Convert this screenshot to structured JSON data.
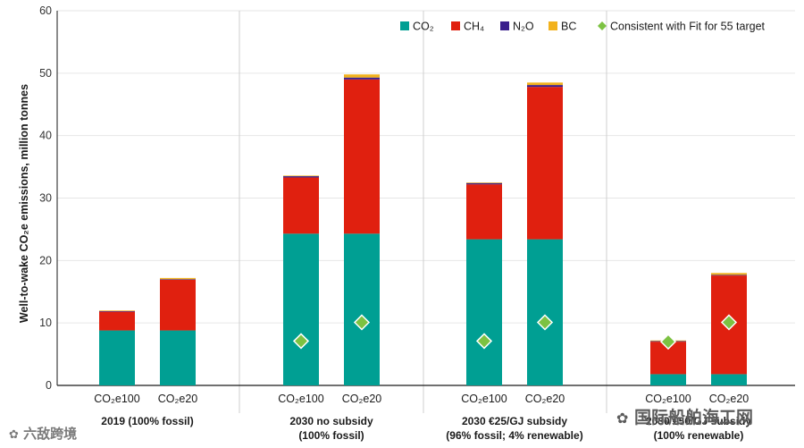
{
  "chart_data": {
    "type": "bar",
    "stacked": true,
    "ylabel": "Well-to-wake CO₂e emissions, million tonnes",
    "ylim": [
      0,
      60
    ],
    "yticks": [
      0,
      10,
      20,
      30,
      40,
      50,
      60
    ],
    "grid": "horizontal",
    "legend_position": "top-right",
    "colors": {
      "CO2": "#009f93",
      "CH4": "#e0200f",
      "N2O": "#3a1f8c",
      "BC": "#f2b21d",
      "target": "#7cc242",
      "grid": "#e6e6e6",
      "divider": "#cfcfcf",
      "axis": "#1a1a1a",
      "text": "#1a1a1a"
    },
    "legend": [
      {
        "key": "CO2",
        "label": "CO₂"
      },
      {
        "key": "CH4",
        "label": "CH₄"
      },
      {
        "key": "N2O",
        "label": "N₂O"
      },
      {
        "key": "BC",
        "label": "BC"
      },
      {
        "key": "target",
        "label": "Consistent with Fit for 55 target"
      }
    ],
    "groups": [
      {
        "label_line1": "2019 (100% fossil)",
        "label_line2": "",
        "bars": [
          {
            "label": "CO₂e100",
            "CO2": 8.8,
            "CH4": 3.0,
            "N2O": 0.1,
            "BC": 0.1,
            "target": null
          },
          {
            "label": "CO₂e20",
            "CO2": 8.8,
            "CH4": 8.1,
            "N2O": 0.1,
            "BC": 0.2,
            "target": null
          }
        ]
      },
      {
        "label_line1": "2030 no subsidy",
        "label_line2": "(100% fossil)",
        "bars": [
          {
            "label": "CO₂e100",
            "CO2": 24.3,
            "CH4": 9.0,
            "N2O": 0.2,
            "BC": 0.1,
            "target": 7.1
          },
          {
            "label": "CO₂e20",
            "CO2": 24.3,
            "CH4": 24.7,
            "N2O": 0.3,
            "BC": 0.5,
            "target": 10.1
          }
        ]
      },
      {
        "label_line1": "2030 €25/GJ subsidy",
        "label_line2": "(96% fossil; 4% renewable)",
        "bars": [
          {
            "label": "CO₂e100",
            "CO2": 23.4,
            "CH4": 8.8,
            "N2O": 0.2,
            "BC": 0.1,
            "target": 7.1
          },
          {
            "label": "CO₂e20",
            "CO2": 23.4,
            "CH4": 24.4,
            "N2O": 0.3,
            "BC": 0.4,
            "target": 10.1
          }
        ]
      },
      {
        "label_line1": "2030 €50/GJ subsidy",
        "label_line2": "(100% renewable)",
        "bars": [
          {
            "label": "CO₂e100",
            "CO2": 1.8,
            "CH4": 5.2,
            "N2O": 0.1,
            "BC": 0.1,
            "target": 7.0
          },
          {
            "label": "CO₂e20",
            "CO2": 1.8,
            "CH4": 15.8,
            "N2O": 0.1,
            "BC": 0.3,
            "target": 10.1
          }
        ]
      }
    ]
  },
  "watermarks": {
    "bottom_left": "六敌跨境",
    "bottom_right": "国际船舶海工网"
  }
}
